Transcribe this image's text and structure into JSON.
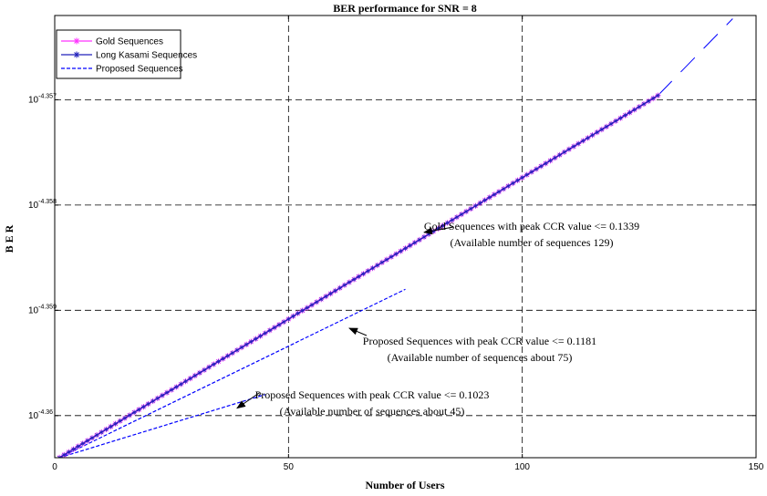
{
  "chart_data": {
    "type": "line",
    "title": "BER performance for SNR = 8",
    "xlabel": "Number of Users",
    "ylabel": "B E R",
    "xlim": [
      0,
      150
    ],
    "ylim": [
      -4.3604,
      -4.3562
    ],
    "yscale": "log10",
    "grid": true,
    "legend_position": "top-left",
    "x_ticks": [
      {
        "value": 0,
        "label": "0"
      },
      {
        "value": 50,
        "label": "50"
      },
      {
        "value": 100,
        "label": "100"
      },
      {
        "value": 150,
        "label": "150"
      }
    ],
    "y_ticks": [
      {
        "value": -4.36,
        "base": "10",
        "exponent": "-4.36"
      },
      {
        "value": -4.359,
        "base": "10",
        "exponent": "-4.359"
      },
      {
        "value": -4.358,
        "base": "10",
        "exponent": "-4.358"
      },
      {
        "value": -4.357,
        "base": "10",
        "exponent": "-4.357"
      }
    ],
    "series": [
      {
        "name": "Gold Sequences",
        "color": "#ff33ff",
        "marker": "star",
        "line": "solid",
        "x": [
          1,
          129
        ],
        "log10_y": [
          -4.3604,
          -4.35696
        ]
      },
      {
        "name": "Long Kasami Sequences",
        "color": "#2222bb",
        "marker": "star",
        "line": "solid",
        "x": [
          1,
          129
        ],
        "log10_y": [
          -4.3604,
          -4.35696
        ]
      },
      {
        "name": "Proposed Sequences",
        "color": "#0000ff",
        "marker": "none",
        "line": "dashed",
        "x": [
          1,
          75
        ],
        "log10_y": [
          -4.3604,
          -4.3588
        ]
      },
      {
        "name": "",
        "color": "#0000ff",
        "marker": "none",
        "line": "dashed",
        "x": [
          1,
          45
        ],
        "log10_y": [
          -4.3604,
          -4.3598
        ]
      },
      {
        "name": "",
        "color": "#0000ff",
        "marker": "none",
        "line": "long-dash",
        "x": [
          129,
          145
        ],
        "log10_y": [
          -4.35696,
          -4.35623
        ]
      }
    ],
    "annotations": [
      {
        "line1": "Gold Sequences with peak CCR value <= 0.1339",
        "line2": "(Available number of sequences 129)",
        "arrow_to": [
          79,
          -4.35826
        ]
      },
      {
        "line1": "Proposed Sequences with peak CCR value <= 0.1181",
        "line2": "(Available number of sequences about 75)",
        "arrow_to": [
          63,
          -4.35917
        ]
      },
      {
        "line1": "Proposed Sequences with peak CCR value <= 0.1023",
        "line2": "(Available number of sequences about 45)",
        "arrow_to": [
          39,
          -4.35993
        ]
      }
    ]
  }
}
